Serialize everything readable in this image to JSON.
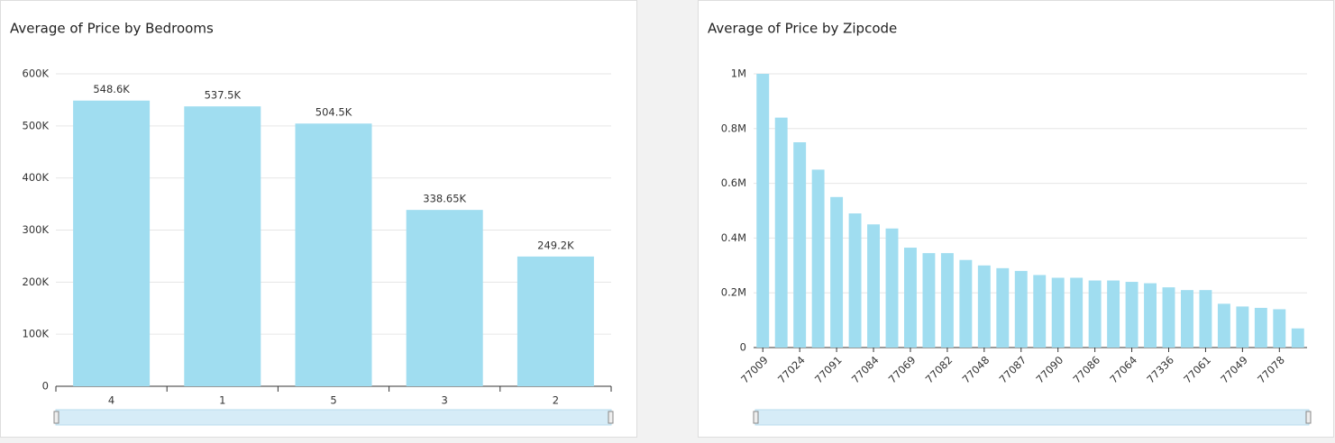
{
  "chart_data": [
    {
      "type": "bar",
      "title": "Average of Price by Bedrooms",
      "categories": [
        "4",
        "1",
        "5",
        "3",
        "2"
      ],
      "values": [
        548600,
        537500,
        504500,
        338650,
        249200
      ],
      "value_labels": [
        "548.6K",
        "537.5K",
        "504.5K",
        "338.65K",
        "249.2K"
      ],
      "color": "#a0ddf0",
      "ylim": [
        0,
        600000
      ],
      "yticks": [
        0,
        {
          "value": 100000,
          "label": "100K"
        },
        {
          "value": 200000,
          "label": "200K"
        },
        {
          "value": 300000,
          "label": "300K"
        },
        {
          "value": 400000,
          "label": "400K"
        },
        {
          "value": 500000,
          "label": "500K"
        },
        {
          "value": 600000,
          "label": "600K"
        }
      ],
      "grid": true
    },
    {
      "type": "bar",
      "title": "Average of Price by Zipcode",
      "categories": [
        "77009",
        null,
        "77024",
        null,
        "77091",
        null,
        "77084",
        null,
        "77069",
        null,
        "77082",
        null,
        "77048",
        null,
        "77087",
        null,
        "77090",
        null,
        "77086",
        null,
        "77064",
        null,
        "77336",
        null,
        "77061",
        null,
        "77049",
        null,
        "77078",
        null
      ],
      "values": [
        1000000,
        840000,
        750000,
        650000,
        550000,
        490000,
        450000,
        435000,
        365000,
        345000,
        345000,
        320000,
        300000,
        290000,
        280000,
        265000,
        255000,
        255000,
        245000,
        245000,
        240000,
        235000,
        220000,
        210000,
        210000,
        160000,
        150000,
        145000,
        140000,
        70000
      ],
      "color": "#a0ddf0",
      "ylim": [
        0,
        1000000
      ],
      "yticks": [
        0,
        {
          "value": 200000,
          "label": "0.2M"
        },
        {
          "value": 400000,
          "label": "0.4M"
        },
        {
          "value": 600000,
          "label": "0.6M"
        },
        {
          "value": 800000,
          "label": "0.8M"
        },
        {
          "value": 1000000,
          "label": "1M"
        }
      ],
      "grid": true
    }
  ]
}
